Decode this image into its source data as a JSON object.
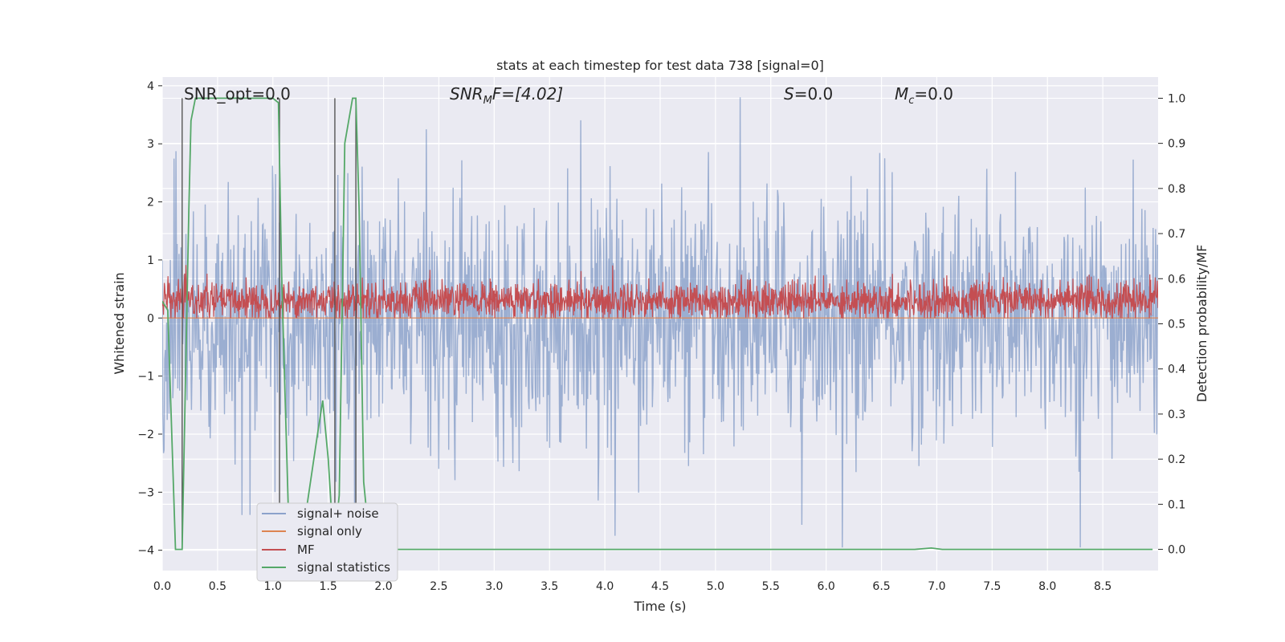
{
  "chart_data": {
    "type": "line",
    "title": "stats at each timestep for test data 738 [signal=0]",
    "xlabel": "Time (s)",
    "ylabel": "Whitened strain",
    "y2label": "Detection probability/MF",
    "xlim": [
      0.0,
      9.0
    ],
    "ylim": [
      -4.35,
      4.15
    ],
    "y2lim": [
      -0.047,
      1.047
    ],
    "x_ticks": [
      "0.0",
      "0.5",
      "1.0",
      "1.5",
      "2.0",
      "2.5",
      "3.0",
      "3.5",
      "4.0",
      "4.5",
      "5.0",
      "5.5",
      "6.0",
      "6.5",
      "7.0",
      "7.5",
      "8.0",
      "8.5"
    ],
    "y_ticks": [
      "−4",
      "−3",
      "−2",
      "−1",
      "0",
      "1",
      "2",
      "3",
      "4"
    ],
    "y2_ticks": [
      "0.0",
      "0.1",
      "0.2",
      "0.3",
      "0.4",
      "0.5",
      "0.6",
      "0.7",
      "0.8",
      "0.9",
      "1.0"
    ],
    "grid": true,
    "legend_position": "lower-left",
    "annotations": {
      "snr_opt": "SNR_opt=0.0",
      "snr_mf_main": "SNR",
      "snr_mf_sub": "M",
      "snr_mf_rest": "F=[4.02]",
      "s_main": "S",
      "s_rest": "=0.0",
      "mc_main": "M",
      "mc_sub": "c",
      "mc_rest": "=0.0"
    },
    "series": [
      {
        "name": "signal+ noise",
        "color": "#4c72b0",
        "axis": "left",
        "description_values": "noisy whitened strain around 0 within about ±2.5 with spikes to ±3.8",
        "x_range": [
          0.0,
          9.0
        ],
        "sample_count": 1600,
        "approx_std": 1.0
      },
      {
        "name": "signal only",
        "color": "#dd8452",
        "axis": "left",
        "x": [
          0.0,
          9.0
        ],
        "y": [
          0.0,
          0.0
        ]
      },
      {
        "name": "MF",
        "color": "#c44e52",
        "axis": "left",
        "x_range": [
          0.0,
          9.0
        ],
        "approx_mean": 0.3,
        "approx_range": [
          0.0,
          0.95
        ]
      },
      {
        "name": "signal statistics",
        "color": "#55a868",
        "axis": "right",
        "x": [
          0.0,
          0.05,
          0.12,
          0.18,
          0.24,
          0.26,
          0.3,
          0.5,
          1.0,
          1.05,
          1.08,
          1.15,
          1.25,
          1.4,
          1.45,
          1.5,
          1.55,
          1.6,
          1.65,
          1.72,
          1.75,
          1.78,
          1.82,
          1.88,
          2.0,
          3.0,
          4.0,
          5.0,
          6.0,
          6.8,
          6.95,
          7.05,
          8.0,
          8.95
        ],
        "y": [
          0.55,
          0.53,
          0.0,
          0.0,
          0.75,
          0.95,
          1.0,
          1.0,
          1.0,
          0.99,
          0.6,
          0.0,
          0.0,
          0.25,
          0.33,
          0.2,
          0.0,
          0.12,
          0.9,
          1.0,
          1.0,
          0.75,
          0.15,
          0.0,
          0.0,
          0.0,
          0.0,
          0.0,
          0.0,
          0.0,
          0.003,
          0.0,
          0.0,
          0.0
        ]
      }
    ],
    "vertical_lines": [
      0.18,
      1.06,
      1.56,
      1.75
    ]
  }
}
